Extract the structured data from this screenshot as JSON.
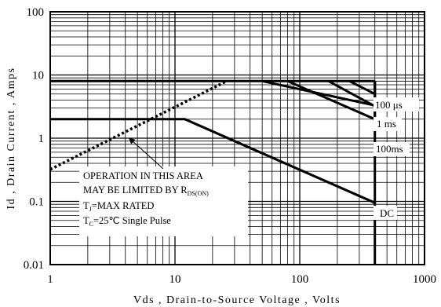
{
  "chart_data": {
    "type": "line",
    "title": "",
    "xlabel": "Vds , Drain-to-Source Voltage , Volts",
    "ylabel": "Id , Drain Current , Amps",
    "xscale": "log",
    "yscale": "log",
    "xlim": [
      1,
      1000
    ],
    "ylim": [
      0.01,
      100
    ],
    "grid": true,
    "x_tick_labels": [
      "1",
      "10",
      "100",
      "1000"
    ],
    "y_tick_labels": [
      "100",
      "10",
      "1",
      "0.1",
      "0.01"
    ],
    "series": [
      {
        "name": "100 μs",
        "x": [
          50,
          400,
          400
        ],
        "y": [
          8,
          3.3,
          8
        ]
      },
      {
        "name": "1 ms",
        "x": [
          80,
          400,
          400
        ],
        "y": [
          8,
          2.0,
          8
        ]
      },
      {
        "name": "100ms",
        "x": [
          12,
          400,
          400
        ],
        "y": [
          2,
          0.095,
          8
        ]
      },
      {
        "name": "DC",
        "x": [
          1,
          12,
          400,
          400
        ],
        "y": [
          2,
          2,
          0.095,
          0.01
        ]
      },
      {
        "name": "",
        "x": [
          1,
          400
        ],
        "y": [
          8,
          8
        ]
      },
      {
        "name": "",
        "x": [
          170,
          400
        ],
        "y": [
          8,
          3.2
        ]
      },
      {
        "name": "",
        "x": [
          250,
          400
        ],
        "y": [
          8,
          5
        ]
      }
    ],
    "rds_on_limit": {
      "x": [
        1,
        26
      ],
      "y": [
        0.32,
        8
      ]
    },
    "annotation": {
      "lines": [
        "OPERATION IN THIS AREA",
        "MAY BE LIMITED BY R",
        "DS(ON)",
        "T",
        "J",
        "=MAX RATED",
        "T",
        "C",
        "=25℃  Single Pulse"
      ],
      "arrow_target": {
        "x": 4.3,
        "y": 1.0
      }
    }
  }
}
